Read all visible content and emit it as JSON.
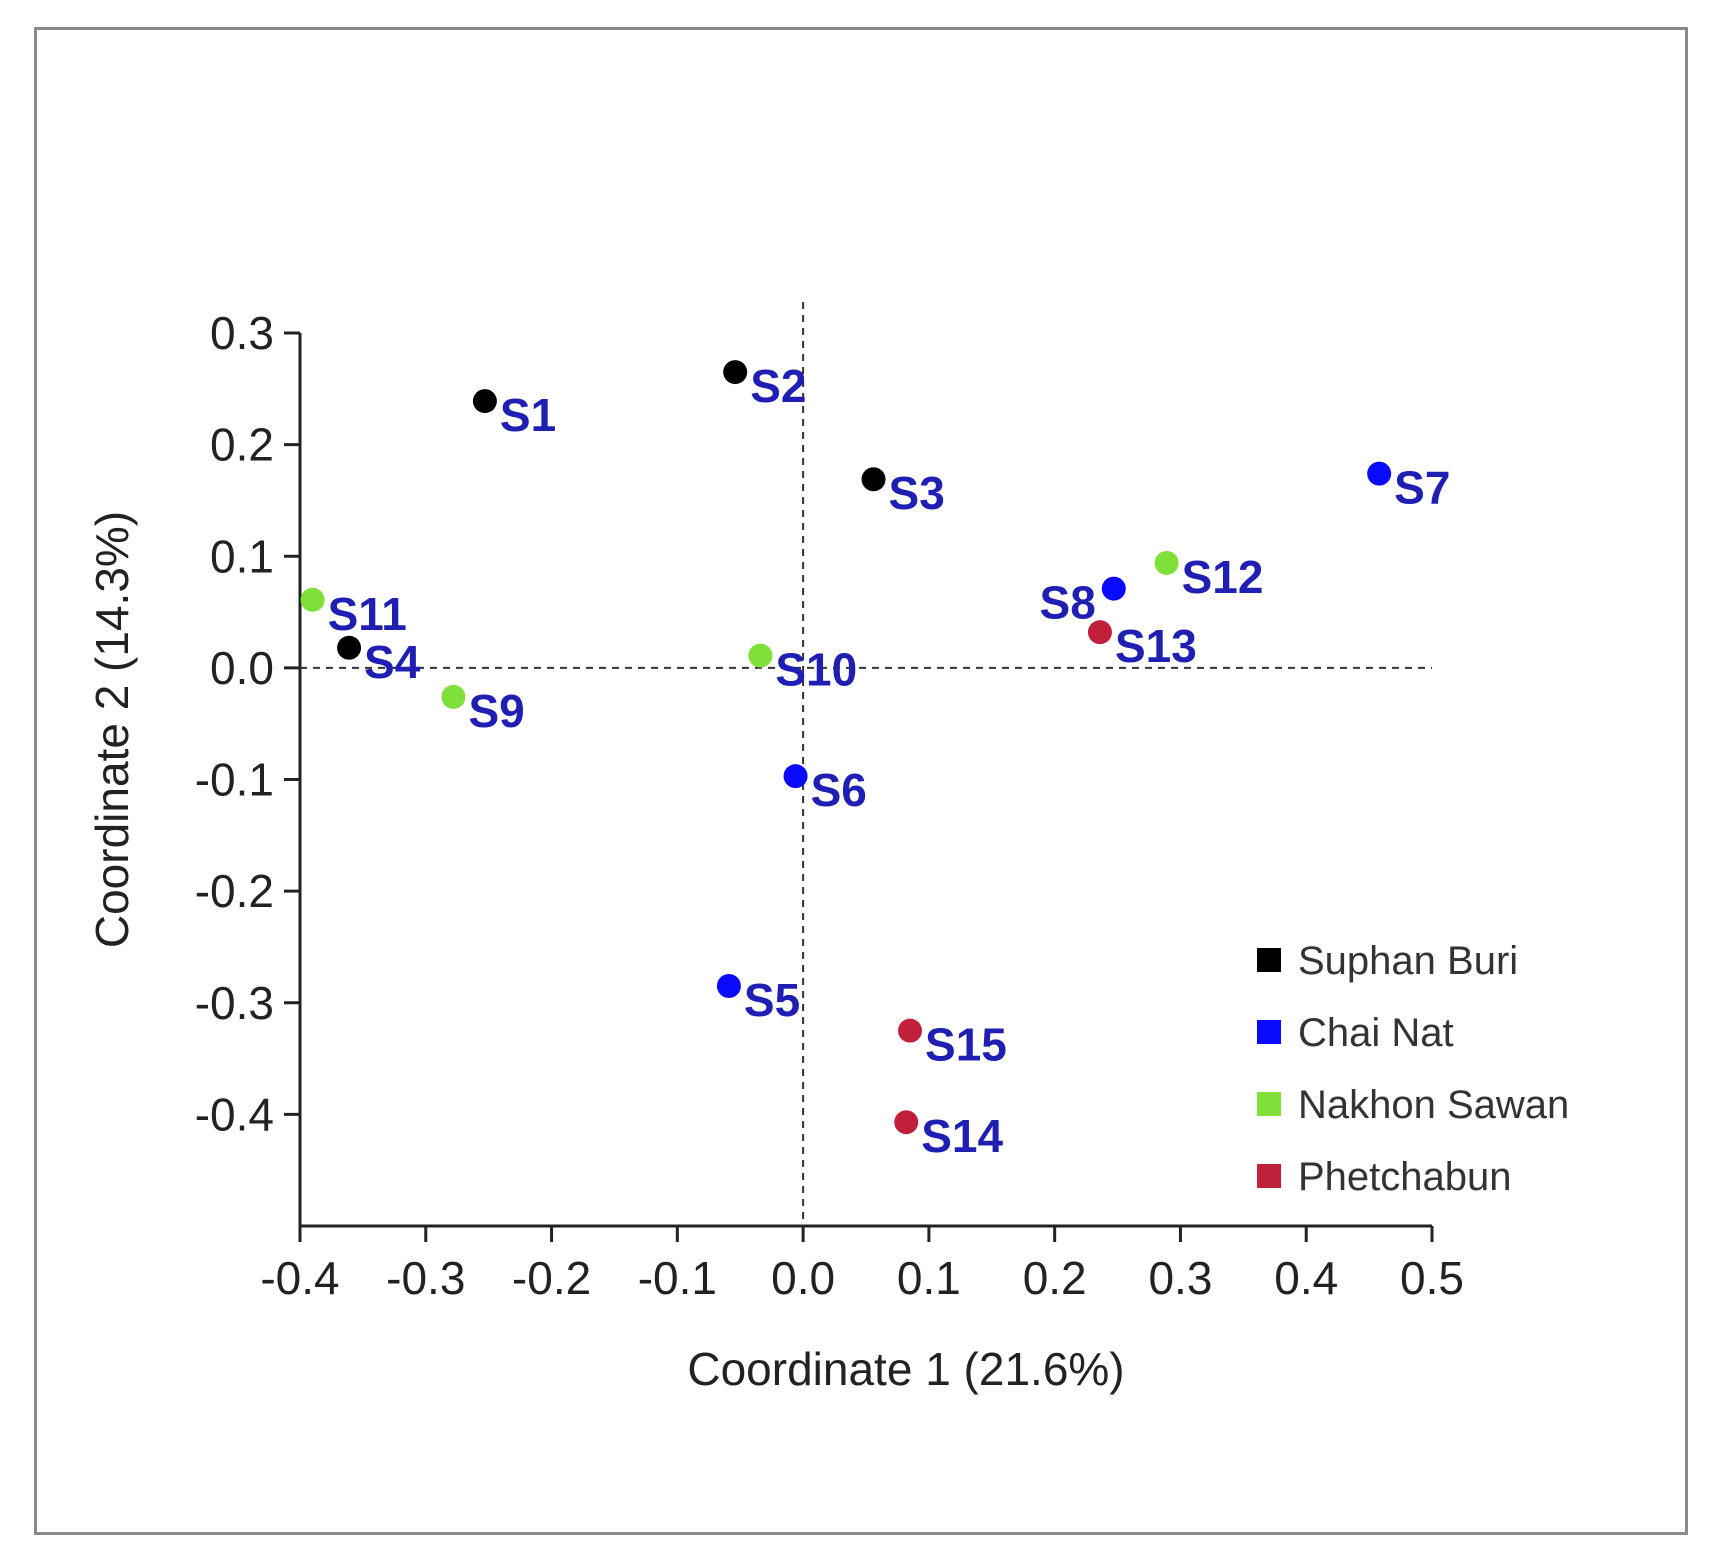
{
  "chart_data": {
    "type": "scatter",
    "title": "",
    "xlabel": "Coordinate 1 (21.6%)",
    "ylabel": "Coordinate 2 (14.3%)",
    "xlim": [
      -0.4,
      0.5
    ],
    "ylim": [
      -0.5,
      0.3
    ],
    "xticks": [
      "-0.4",
      "-0.3",
      "-0.2",
      "-0.1",
      "0.0",
      "0.1",
      "0.2",
      "0.3",
      "0.4",
      "0.5"
    ],
    "yticks": [
      "0.3",
      "0.2",
      "0.1",
      "0.0",
      "-0.1",
      "-0.2",
      "-0.3",
      "-0.4"
    ],
    "grid": false,
    "reference_lines": {
      "x": 0.0,
      "y": 0.0,
      "style": "dashed"
    },
    "label_color": "#1f1fb4",
    "legend_position": "bottom-right",
    "groups": [
      {
        "name": "Suphan Buri",
        "color": "#000000"
      },
      {
        "name": "Chai Nat",
        "color": "#0a0aff"
      },
      {
        "name": "Nakhon Sawan",
        "color": "#7fe03a"
      },
      {
        "name": "Phetchabun",
        "color": "#c0203c"
      }
    ],
    "points": [
      {
        "label": "S1",
        "x": -0.253,
        "y": 0.239,
        "group": "Suphan Buri",
        "label_side": "right"
      },
      {
        "label": "S2",
        "x": -0.054,
        "y": 0.265,
        "group": "Suphan Buri",
        "label_side": "right"
      },
      {
        "label": "S3",
        "x": 0.056,
        "y": 0.169,
        "group": "Suphan Buri",
        "label_side": "right"
      },
      {
        "label": "S4",
        "x": -0.361,
        "y": 0.018,
        "group": "Suphan Buri",
        "label_side": "right"
      },
      {
        "label": "S5",
        "x": -0.059,
        "y": -0.285,
        "group": "Chai Nat",
        "label_side": "right"
      },
      {
        "label": "S6",
        "x": -0.006,
        "y": -0.097,
        "group": "Chai Nat",
        "label_side": "right"
      },
      {
        "label": "S7",
        "x": 0.458,
        "y": 0.174,
        "group": "Chai Nat",
        "label_side": "right"
      },
      {
        "label": "S8",
        "x": 0.247,
        "y": 0.071,
        "group": "Chai Nat",
        "label_side": "left"
      },
      {
        "label": "S9",
        "x": -0.278,
        "y": -0.026,
        "group": "Nakhon Sawan",
        "label_side": "right"
      },
      {
        "label": "S10",
        "x": -0.034,
        "y": 0.011,
        "group": "Nakhon Sawan",
        "label_side": "right"
      },
      {
        "label": "S11",
        "x": -0.39,
        "y": 0.061,
        "group": "Nakhon Sawan",
        "label_side": "right"
      },
      {
        "label": "S12",
        "x": 0.289,
        "y": 0.094,
        "group": "Nakhon Sawan",
        "label_side": "right"
      },
      {
        "label": "S13",
        "x": 0.236,
        "y": 0.032,
        "group": "Phetchabun",
        "label_side": "right"
      },
      {
        "label": "S14",
        "x": 0.082,
        "y": -0.407,
        "group": "Phetchabun",
        "label_side": "right"
      },
      {
        "label": "S15",
        "x": 0.085,
        "y": -0.325,
        "group": "Phetchabun",
        "label_side": "right"
      }
    ]
  }
}
